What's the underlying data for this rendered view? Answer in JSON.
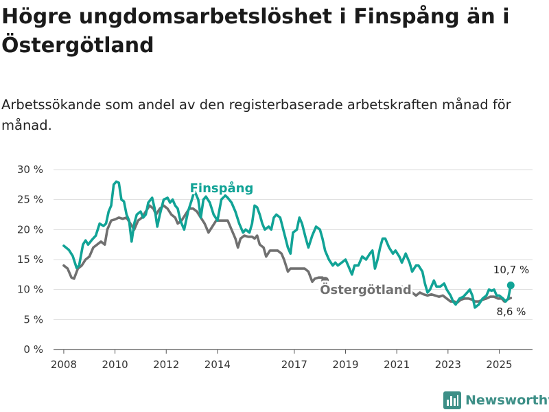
{
  "title": "Högre ungdomsarbetslöshet i Finspång än i Östergötland",
  "subtitle": "Arbetssökande som andel av den registerbaserade arbetskraften månad för månad.",
  "brand": {
    "name": "Newsworthy",
    "icon": "bar-chart-logo-icon",
    "color": "#3d8f87"
  },
  "colors": {
    "finspang": "#11a396",
    "ostergotland": "#707070",
    "grid": "#dddddd"
  },
  "chart_data": {
    "type": "line",
    "title": "Högre ungdomsarbetslöshet i Finspång än i Östergötland",
    "xlabel": "",
    "ylabel": "",
    "ylim": [
      0,
      30
    ],
    "xlim": [
      2007.6,
      2026.3
    ],
    "grid": true,
    "legend": "inline labels",
    "y_ticks": [
      0,
      5,
      10,
      15,
      20,
      25,
      30
    ],
    "y_tick_labels": [
      "0 %",
      "5 %",
      "10 %",
      "15 %",
      "20 %",
      "25 %",
      "30 %"
    ],
    "x_ticks": [
      2008,
      2010,
      2012,
      2014,
      2017,
      2019,
      2021,
      2023,
      2025
    ],
    "x_tick_labels": [
      "2008",
      "2010",
      "2012",
      "2014",
      "2017",
      "2019",
      "2021",
      "2023",
      "2025"
    ],
    "series": [
      {
        "name": "Finspång",
        "color": "#11a396",
        "end_label": "10,7 %",
        "points": [
          [
            2008.0,
            17.3
          ],
          [
            2008.2,
            16.6
          ],
          [
            2008.35,
            15.6
          ],
          [
            2008.5,
            13.6
          ],
          [
            2008.6,
            14.0
          ],
          [
            2008.75,
            17.5
          ],
          [
            2008.85,
            18.2
          ],
          [
            2008.95,
            17.5
          ],
          [
            2009.1,
            18.3
          ],
          [
            2009.25,
            19.0
          ],
          [
            2009.4,
            21.0
          ],
          [
            2009.55,
            20.6
          ],
          [
            2009.65,
            21.0
          ],
          [
            2009.75,
            23.0
          ],
          [
            2009.85,
            24.0
          ],
          [
            2009.95,
            27.5
          ],
          [
            2010.05,
            28.0
          ],
          [
            2010.15,
            27.8
          ],
          [
            2010.25,
            25.0
          ],
          [
            2010.35,
            24.7
          ],
          [
            2010.45,
            22.5
          ],
          [
            2010.55,
            21.5
          ],
          [
            2010.65,
            18.0
          ],
          [
            2010.75,
            21.0
          ],
          [
            2010.85,
            22.5
          ],
          [
            2011.0,
            23.0
          ],
          [
            2011.1,
            22.0
          ],
          [
            2011.2,
            22.5
          ],
          [
            2011.3,
            24.5
          ],
          [
            2011.45,
            25.3
          ],
          [
            2011.55,
            23.5
          ],
          [
            2011.65,
            20.5
          ],
          [
            2011.75,
            22.5
          ],
          [
            2011.9,
            25.0
          ],
          [
            2012.05,
            25.3
          ],
          [
            2012.15,
            24.5
          ],
          [
            2012.25,
            25.0
          ],
          [
            2012.35,
            24.0
          ],
          [
            2012.45,
            23.5
          ],
          [
            2012.55,
            21.5
          ],
          [
            2012.7,
            20.0
          ],
          [
            2012.85,
            23.0
          ],
          [
            2013.0,
            25.0
          ],
          [
            2013.1,
            26.5
          ],
          [
            2013.25,
            25.0
          ],
          [
            2013.35,
            22.0
          ],
          [
            2013.45,
            25.0
          ],
          [
            2013.55,
            25.5
          ],
          [
            2013.7,
            24.5
          ],
          [
            2013.85,
            22.5
          ],
          [
            2014.0,
            21.5
          ],
          [
            2014.15,
            25.0
          ],
          [
            2014.3,
            25.7
          ],
          [
            2014.4,
            25.3
          ],
          [
            2014.55,
            24.5
          ],
          [
            2014.7,
            23.0
          ],
          [
            2014.85,
            21.0
          ],
          [
            2015.0,
            19.5
          ],
          [
            2015.1,
            20.0
          ],
          [
            2015.25,
            19.5
          ],
          [
            2015.35,
            21.0
          ],
          [
            2015.45,
            24.0
          ],
          [
            2015.55,
            23.7
          ],
          [
            2015.65,
            22.5
          ],
          [
            2015.75,
            21.0
          ],
          [
            2015.85,
            20.0
          ],
          [
            2016.0,
            20.5
          ],
          [
            2016.1,
            20.0
          ],
          [
            2016.2,
            22.0
          ],
          [
            2016.3,
            22.5
          ],
          [
            2016.45,
            22.0
          ],
          [
            2016.6,
            19.5
          ],
          [
            2016.75,
            17.0
          ],
          [
            2016.85,
            16.0
          ],
          [
            2016.95,
            19.5
          ],
          [
            2017.1,
            20.0
          ],
          [
            2017.2,
            22.0
          ],
          [
            2017.3,
            21.0
          ],
          [
            2017.45,
            18.5
          ],
          [
            2017.55,
            17.0
          ],
          [
            2017.7,
            19.0
          ],
          [
            2017.85,
            20.5
          ],
          [
            2018.0,
            20.0
          ],
          [
            2018.1,
            18.5
          ],
          [
            2018.2,
            16.5
          ],
          [
            2018.35,
            15.0
          ],
          [
            2018.5,
            14.0
          ],
          [
            2018.6,
            14.5
          ],
          [
            2018.7,
            14.0
          ],
          [
            2018.85,
            14.5
          ],
          [
            2019.0,
            15.0
          ],
          [
            2019.1,
            14.0
          ],
          [
            2019.25,
            12.5
          ],
          [
            2019.35,
            14.0
          ],
          [
            2019.5,
            14.0
          ],
          [
            2019.65,
            15.5
          ],
          [
            2019.8,
            15.0
          ],
          [
            2019.95,
            16.0
          ],
          [
            2020.05,
            16.5
          ],
          [
            2020.15,
            13.5
          ],
          [
            2020.25,
            15.0
          ],
          [
            2020.35,
            17.0
          ],
          [
            2020.45,
            18.5
          ],
          [
            2020.55,
            18.5
          ],
          [
            2020.7,
            17.0
          ],
          [
            2020.85,
            16.0
          ],
          [
            2020.95,
            16.5
          ],
          [
            2021.1,
            15.5
          ],
          [
            2021.2,
            14.5
          ],
          [
            2021.35,
            16.0
          ],
          [
            2021.5,
            14.5
          ],
          [
            2021.6,
            13.0
          ],
          [
            2021.75,
            14.0
          ],
          [
            2021.85,
            14.0
          ],
          [
            2022.0,
            13.0
          ],
          [
            2022.1,
            11.0
          ],
          [
            2022.2,
            9.5
          ],
          [
            2022.3,
            10.0
          ],
          [
            2022.45,
            11.5
          ],
          [
            2022.55,
            10.5
          ],
          [
            2022.7,
            10.5
          ],
          [
            2022.85,
            11.0
          ],
          [
            2022.95,
            10.0
          ],
          [
            2023.1,
            9.0
          ],
          [
            2023.2,
            8.0
          ],
          [
            2023.3,
            7.5
          ],
          [
            2023.45,
            8.5
          ],
          [
            2023.6,
            8.8
          ],
          [
            2023.75,
            9.5
          ],
          [
            2023.85,
            10.0
          ],
          [
            2023.95,
            9.0
          ],
          [
            2024.05,
            7.0
          ],
          [
            2024.2,
            7.5
          ],
          [
            2024.35,
            8.5
          ],
          [
            2024.5,
            9.0
          ],
          [
            2024.6,
            10.0
          ],
          [
            2024.7,
            9.8
          ],
          [
            2024.8,
            10.0
          ],
          [
            2024.9,
            9.0
          ],
          [
            2025.0,
            9.0
          ],
          [
            2025.15,
            8.5
          ],
          [
            2025.25,
            8.0
          ],
          [
            2025.35,
            8.5
          ],
          [
            2025.45,
            10.7
          ]
        ]
      },
      {
        "name": "Östergötland",
        "color": "#707070",
        "end_label": "8,6 %",
        "points": [
          [
            2008.0,
            14.0
          ],
          [
            2008.15,
            13.5
          ],
          [
            2008.3,
            12.0
          ],
          [
            2008.4,
            11.8
          ],
          [
            2008.55,
            13.5
          ],
          [
            2008.7,
            14.0
          ],
          [
            2008.85,
            15.0
          ],
          [
            2009.0,
            15.5
          ],
          [
            2009.15,
            17.0
          ],
          [
            2009.3,
            17.5
          ],
          [
            2009.45,
            18.0
          ],
          [
            2009.6,
            17.5
          ],
          [
            2009.7,
            20.0
          ],
          [
            2009.85,
            21.5
          ],
          [
            2010.0,
            21.7
          ],
          [
            2010.15,
            22.0
          ],
          [
            2010.3,
            21.8
          ],
          [
            2010.45,
            22.0
          ],
          [
            2010.6,
            21.0
          ],
          [
            2010.75,
            20.0
          ],
          [
            2010.9,
            21.5
          ],
          [
            2011.05,
            22.0
          ],
          [
            2011.2,
            23.0
          ],
          [
            2011.35,
            24.0
          ],
          [
            2011.5,
            23.5
          ],
          [
            2011.6,
            22.5
          ],
          [
            2011.75,
            23.5
          ],
          [
            2011.9,
            24.0
          ],
          [
            2012.05,
            23.5
          ],
          [
            2012.2,
            22.5
          ],
          [
            2012.35,
            22.0
          ],
          [
            2012.45,
            21.0
          ],
          [
            2012.6,
            21.5
          ],
          [
            2012.75,
            22.5
          ],
          [
            2012.9,
            23.5
          ],
          [
            2013.05,
            23.5
          ],
          [
            2013.2,
            23.0
          ],
          [
            2013.35,
            22.0
          ],
          [
            2013.5,
            21.0
          ],
          [
            2013.65,
            19.5
          ],
          [
            2013.8,
            20.5
          ],
          [
            2013.95,
            21.5
          ],
          [
            2014.1,
            21.5
          ],
          [
            2014.25,
            21.5
          ],
          [
            2014.4,
            21.5
          ],
          [
            2014.55,
            20.0
          ],
          [
            2014.7,
            18.5
          ],
          [
            2014.8,
            17.0
          ],
          [
            2014.9,
            18.5
          ],
          [
            2015.05,
            19.0
          ],
          [
            2015.2,
            18.8
          ],
          [
            2015.35,
            18.8
          ],
          [
            2015.45,
            18.5
          ],
          [
            2015.55,
            19.0
          ],
          [
            2015.65,
            17.5
          ],
          [
            2015.8,
            17.0
          ],
          [
            2015.9,
            15.5
          ],
          [
            2016.05,
            16.5
          ],
          [
            2016.2,
            16.5
          ],
          [
            2016.35,
            16.5
          ],
          [
            2016.5,
            16.0
          ],
          [
            2016.6,
            15.0
          ],
          [
            2016.75,
            13.0
          ],
          [
            2016.85,
            13.5
          ],
          [
            2017.0,
            13.5
          ],
          [
            2017.15,
            13.5
          ],
          [
            2017.3,
            13.5
          ],
          [
            2017.4,
            13.5
          ],
          [
            2017.55,
            13.0
          ],
          [
            2017.7,
            11.3
          ],
          [
            2017.8,
            11.8
          ],
          [
            2017.95,
            12.0
          ],
          [
            2018.1,
            12.0
          ],
          [
            2018.2,
            11.5
          ]
        ]
      },
      {
        "name": "Östergötland",
        "color": "#707070",
        "end_label": "",
        "points": [
          [
            2021.2,
            10.5
          ],
          [
            2021.35,
            10.0
          ],
          [
            2021.5,
            10.0
          ],
          [
            2021.6,
            9.5
          ],
          [
            2021.75,
            9.0
          ],
          [
            2021.9,
            9.5
          ],
          [
            2022.05,
            9.2
          ],
          [
            2022.2,
            9.0
          ],
          [
            2022.35,
            9.2
          ],
          [
            2022.5,
            9.0
          ],
          [
            2022.65,
            8.8
          ],
          [
            2022.8,
            9.0
          ],
          [
            2022.95,
            8.5
          ],
          [
            2023.1,
            8.0
          ],
          [
            2023.25,
            8.0
          ],
          [
            2023.35,
            7.8
          ],
          [
            2023.5,
            8.3
          ],
          [
            2023.65,
            8.5
          ],
          [
            2023.8,
            8.5
          ],
          [
            2023.95,
            8.3
          ],
          [
            2024.05,
            8.0
          ],
          [
            2024.2,
            8.0
          ],
          [
            2024.35,
            8.3
          ],
          [
            2024.5,
            8.5
          ],
          [
            2024.65,
            8.8
          ],
          [
            2024.8,
            8.8
          ],
          [
            2024.95,
            8.5
          ],
          [
            2025.1,
            8.5
          ],
          [
            2025.2,
            8.0
          ],
          [
            2025.3,
            8.3
          ],
          [
            2025.45,
            8.6
          ]
        ]
      }
    ]
  }
}
